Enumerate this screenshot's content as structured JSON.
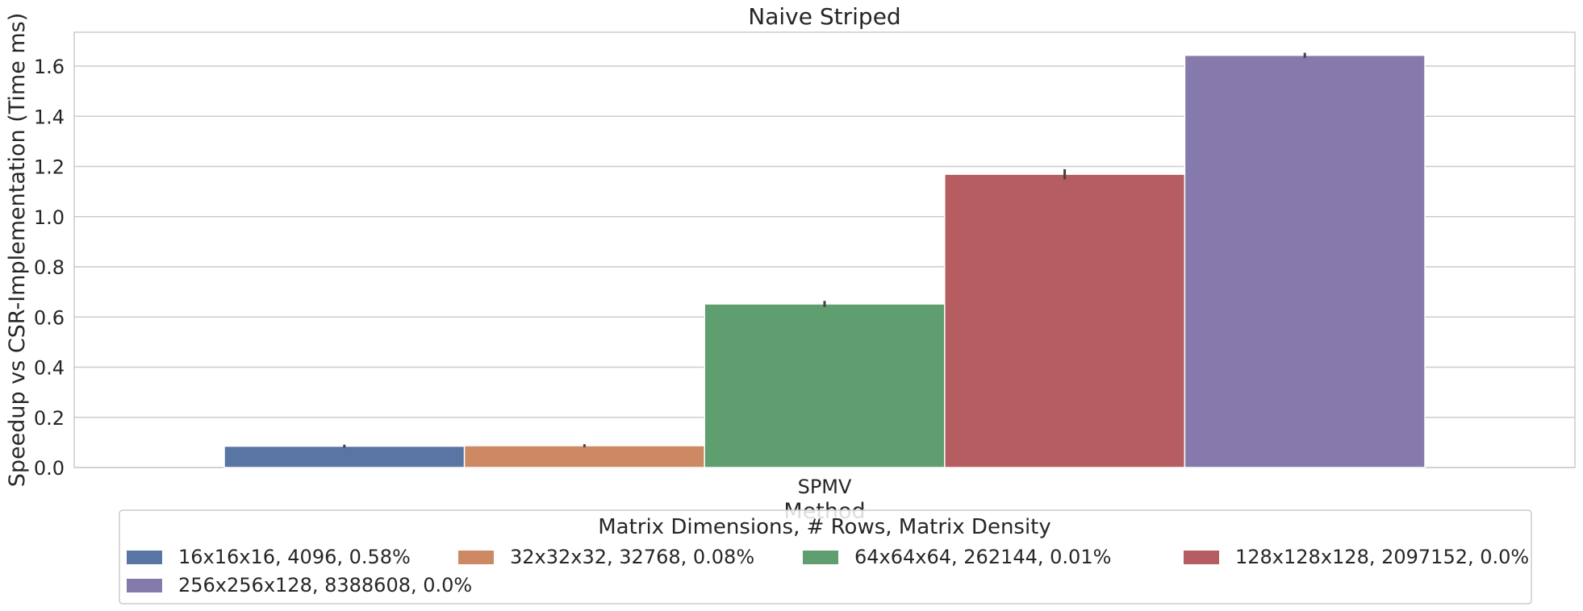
{
  "chart_data": {
    "type": "bar",
    "title": "Naive Striped",
    "xlabel": "Method",
    "ylabel": "Speedup vs CSR-Implementation (Time ms)",
    "categories": [
      "SPMV"
    ],
    "ylim": [
      0,
      1.735
    ],
    "yticks": [
      0.0,
      0.2,
      0.4,
      0.6,
      0.8,
      1.0,
      1.2,
      1.4,
      1.6
    ],
    "grid": true,
    "legend": {
      "title": "Matrix Dimensions, # Rows, Matrix Density",
      "placement": "bottom-center"
    },
    "series": [
      {
        "name": "16x16x16, 4096, 0.58%",
        "values": [
          0.085
        ],
        "err": [
          0.006
        ],
        "color": "#5975a4"
      },
      {
        "name": "32x32x32, 32768, 0.08%",
        "values": [
          0.087
        ],
        "err": [
          0.006
        ],
        "color": "#cc8963"
      },
      {
        "name": "64x64x64, 262144, 0.01%",
        "values": [
          0.652
        ],
        "err": [
          0.012
        ],
        "color": "#5f9e6e"
      },
      {
        "name": "128x128x128, 2097152, 0.0%",
        "values": [
          1.169
        ],
        "err": [
          0.02
        ],
        "color": "#b55d60"
      },
      {
        "name": "256x256x128, 8388608, 0.0%",
        "values": [
          1.643
        ],
        "err": [
          0.01
        ],
        "color": "#857aab"
      }
    ]
  }
}
